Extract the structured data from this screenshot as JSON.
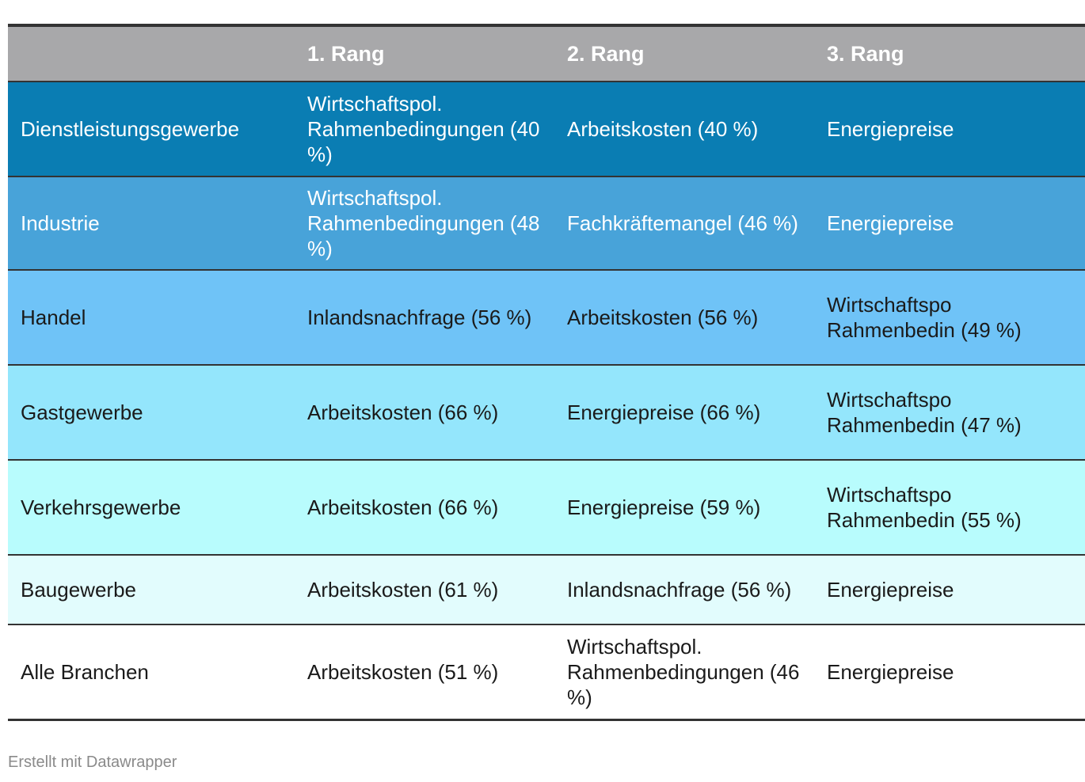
{
  "table": {
    "headers": [
      "",
      "1. Rang",
      "2. Rang",
      "3. Rang"
    ],
    "rows": [
      {
        "sector": "Dienstleistungsgewerbe",
        "rank1": "Wirtschaftspol. Rahmenbedingungen (40 %)",
        "rank2": "Arbeitskosten (40 %)",
        "rank3": "Energiepreise",
        "bg": "#0a7db3",
        "fg": "#ffffff"
      },
      {
        "sector": "Industrie",
        "rank1": "Wirtschaftspol. Rahmenbedingungen (48 %)",
        "rank2": "Fachkräftemangel (46 %)",
        "rank3": "Energiepreise",
        "bg": "#48a3d9",
        "fg": "#ffffff"
      },
      {
        "sector": "Handel",
        "rank1": "Inlandsnachfrage (56 %)",
        "rank2": "Arbeitskosten (56 %)",
        "rank3": "Wirtschaftspo Rahmenbedin (49 %)",
        "bg": "#6fc3f7",
        "fg": "#1a1a1a"
      },
      {
        "sector": "Gastgewerbe",
        "rank1": "Arbeitskosten (66 %)",
        "rank2": "Energiepreise (66 %)",
        "rank3": "Wirtschaftspo Rahmenbedin (47 %)",
        "bg": "#94e6fc",
        "fg": "#1a1a1a"
      },
      {
        "sector": "Verkehrsgewerbe",
        "rank1": "Arbeitskosten (66 %)",
        "rank2": "Energiepreise (59 %)",
        "rank3": "Wirtschaftspo Rahmenbedin (55 %)",
        "bg": "#b8fcfd",
        "fg": "#1a1a1a"
      },
      {
        "sector": "Baugewerbe",
        "rank1": "Arbeitskosten (61 %)",
        "rank2": "Inlandsnachfrage (56 %)",
        "rank3": "Energiepreise",
        "bg": "#e2fcfd",
        "fg": "#1a1a1a"
      },
      {
        "sector": "Alle Branchen",
        "rank1": "Arbeitskosten (51 %)",
        "rank2": "Wirtschaftspol. Rahmenbedingungen (46 %)",
        "rank3": "Energiepreise",
        "bg": "#ffffff",
        "fg": "#1a1a1a"
      }
    ]
  },
  "footer": {
    "credit": "Erstellt mit Datawrapper"
  }
}
